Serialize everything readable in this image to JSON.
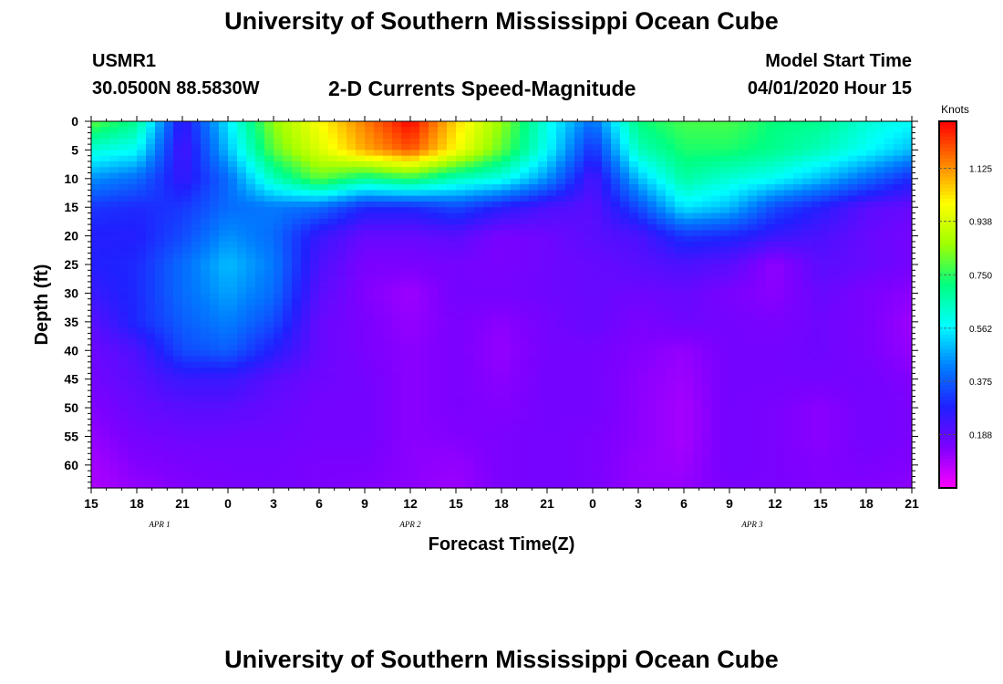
{
  "title": "University of Southern Mississippi Ocean Cube",
  "footer_title": "University of Southern Mississippi Ocean Cube",
  "station": "USMR1",
  "coordinates": "30.0500N 88.5830W",
  "subtitle": "2-D Currents Speed-Magnitude",
  "model_start_label": "Model Start Time",
  "model_start_value": "04/01/2020 Hour 15",
  "chart_data": {
    "type": "heatmap",
    "xlabel": "Forecast Time(Z)",
    "ylabel": "Depth (ft)",
    "x_tick_labels": [
      "15",
      "18",
      "21",
      "0",
      "3",
      "6",
      "9",
      "12",
      "15",
      "18",
      "21",
      "0",
      "3",
      "6",
      "9",
      "12",
      "15",
      "18",
      "21"
    ],
    "x_hours_since_start": [
      0,
      3,
      6,
      9,
      12,
      15,
      18,
      21,
      24,
      27,
      30,
      33,
      36,
      39,
      42,
      45,
      48,
      51,
      54
    ],
    "date_labels": [
      {
        "label": "APR 1",
        "hour": 4.5
      },
      {
        "label": "APR 2",
        "hour": 21
      },
      {
        "label": "APR 3",
        "hour": 43.5
      }
    ],
    "y_ticks": [
      0,
      5,
      10,
      15,
      20,
      25,
      30,
      35,
      40,
      45,
      50,
      55,
      60
    ],
    "ylim": [
      0,
      64
    ],
    "xlim": [
      0,
      54
    ],
    "colorbar": {
      "unit": "Knots",
      "ticks": [
        "0.188",
        "0.375",
        "0.562",
        "0.750",
        "0.938",
        "1.125"
      ],
      "tick_values": [
        0.188,
        0.375,
        0.562,
        0.75,
        0.938,
        1.125
      ],
      "range": [
        0,
        1.29
      ]
    },
    "colors": [
      "#ff00ff",
      "#7f00ff",
      "#2020ff",
      "#0080ff",
      "#00ffff",
      "#00ff80",
      "#a0ff00",
      "#ffff00",
      "#ff8000",
      "#ff0000"
    ],
    "grid_hours": [
      0,
      3,
      6,
      9,
      12,
      15,
      18,
      21,
      24,
      27,
      30,
      33,
      36,
      39,
      42,
      45,
      48,
      51,
      54
    ],
    "grid_depths": [
      0,
      5,
      10,
      15,
      20,
      25,
      30,
      35,
      40,
      45,
      50,
      55,
      60,
      64
    ],
    "speeds": [
      [
        0.8,
        0.7,
        0.25,
        0.55,
        0.85,
        1.0,
        1.15,
        1.29,
        1.05,
        0.85,
        0.6,
        0.4,
        0.72,
        0.78,
        0.78,
        0.72,
        0.7,
        0.62,
        0.58
      ],
      [
        0.62,
        0.58,
        0.22,
        0.5,
        0.8,
        0.95,
        1.1,
        1.2,
        1.0,
        0.8,
        0.58,
        0.3,
        0.65,
        0.74,
        0.74,
        0.7,
        0.65,
        0.58,
        0.5
      ],
      [
        0.45,
        0.4,
        0.25,
        0.4,
        0.65,
        0.8,
        0.7,
        0.75,
        0.65,
        0.6,
        0.45,
        0.22,
        0.5,
        0.68,
        0.62,
        0.58,
        0.5,
        0.4,
        0.3
      ],
      [
        0.32,
        0.3,
        0.32,
        0.4,
        0.42,
        0.4,
        0.3,
        0.3,
        0.35,
        0.28,
        0.22,
        0.2,
        0.35,
        0.55,
        0.5,
        0.35,
        0.28,
        0.2,
        0.18
      ],
      [
        0.28,
        0.28,
        0.35,
        0.45,
        0.4,
        0.25,
        0.18,
        0.18,
        0.2,
        0.15,
        0.17,
        0.2,
        0.22,
        0.32,
        0.3,
        0.25,
        0.22,
        0.18,
        0.16
      ],
      [
        0.28,
        0.3,
        0.4,
        0.5,
        0.42,
        0.22,
        0.15,
        0.15,
        0.16,
        0.15,
        0.17,
        0.18,
        0.2,
        0.22,
        0.2,
        0.12,
        0.2,
        0.18,
        0.16
      ],
      [
        0.25,
        0.3,
        0.4,
        0.47,
        0.4,
        0.2,
        0.14,
        0.11,
        0.16,
        0.16,
        0.17,
        0.18,
        0.17,
        0.18,
        0.15,
        0.13,
        0.18,
        0.15,
        0.13
      ],
      [
        0.2,
        0.3,
        0.38,
        0.43,
        0.35,
        0.18,
        0.15,
        0.12,
        0.15,
        0.13,
        0.16,
        0.18,
        0.15,
        0.17,
        0.16,
        0.15,
        0.17,
        0.15,
        0.11
      ],
      [
        0.17,
        0.22,
        0.35,
        0.38,
        0.28,
        0.18,
        0.15,
        0.13,
        0.15,
        0.12,
        0.16,
        0.16,
        0.14,
        0.12,
        0.16,
        0.16,
        0.17,
        0.15,
        0.12
      ],
      [
        0.16,
        0.2,
        0.25,
        0.25,
        0.2,
        0.17,
        0.16,
        0.13,
        0.15,
        0.13,
        0.16,
        0.16,
        0.13,
        0.11,
        0.16,
        0.16,
        0.16,
        0.16,
        0.14
      ],
      [
        0.14,
        0.18,
        0.2,
        0.2,
        0.18,
        0.16,
        0.16,
        0.13,
        0.15,
        0.14,
        0.16,
        0.16,
        0.13,
        0.1,
        0.16,
        0.15,
        0.13,
        0.16,
        0.15
      ],
      [
        0.12,
        0.16,
        0.17,
        0.17,
        0.17,
        0.16,
        0.16,
        0.13,
        0.14,
        0.15,
        0.16,
        0.15,
        0.13,
        0.1,
        0.16,
        0.15,
        0.13,
        0.16,
        0.15
      ],
      [
        0.1,
        0.14,
        0.15,
        0.16,
        0.16,
        0.15,
        0.15,
        0.13,
        0.12,
        0.15,
        0.16,
        0.15,
        0.12,
        0.11,
        0.16,
        0.15,
        0.14,
        0.15,
        0.14
      ],
      [
        0.09,
        0.12,
        0.14,
        0.15,
        0.16,
        0.15,
        0.14,
        0.13,
        0.11,
        0.15,
        0.16,
        0.15,
        0.12,
        0.12,
        0.15,
        0.15,
        0.14,
        0.14,
        0.13
      ]
    ]
  }
}
